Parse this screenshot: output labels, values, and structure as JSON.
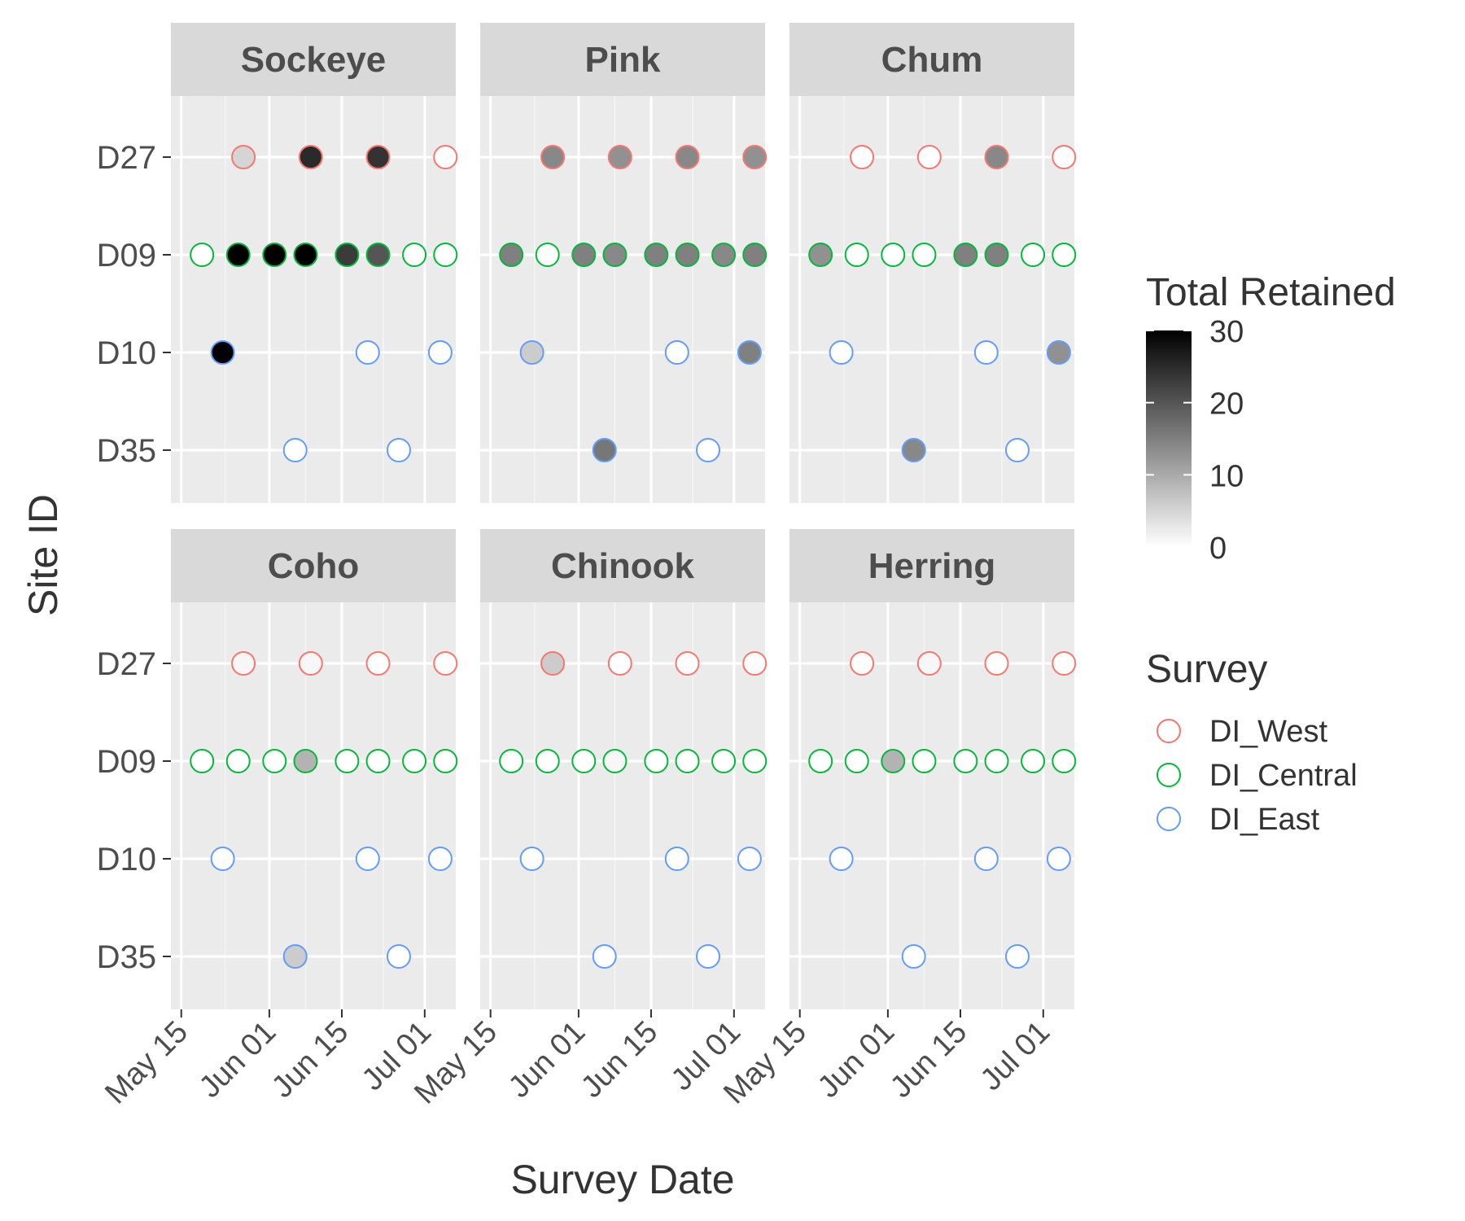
{
  "chart_data": {
    "type": "scatter",
    "x_axis": {
      "label": "Survey Date",
      "ticks": [
        {
          "date": "2019-05-15",
          "label": "May 15"
        },
        {
          "date": "2019-06-01",
          "label": "Jun 01"
        },
        {
          "date": "2019-06-15",
          "label": "Jun 15"
        },
        {
          "date": "2019-07-01",
          "label": "Jul 01"
        }
      ],
      "range": [
        "2019-05-13",
        "2019-07-07"
      ]
    },
    "y_axis": {
      "label": "Site ID",
      "categories": [
        "D27",
        "D09",
        "D10",
        "D35"
      ]
    },
    "fill_scale": {
      "title": "Total Retained",
      "min": 0,
      "max": 30,
      "ticks": [
        0,
        10,
        20,
        30
      ],
      "low_color": "#ffffff",
      "high_color": "#000000"
    },
    "color_legend": {
      "title": "Survey",
      "entries": [
        {
          "name": "DI_West",
          "color": "#F8766D"
        },
        {
          "name": "DI_Central",
          "color": "#00BA38"
        },
        {
          "name": "DI_East",
          "color": "#619CFF"
        }
      ]
    },
    "site_survey": {
      "D27": "DI_West",
      "D09": "DI_Central",
      "D10": "DI_East",
      "D35": "DI_East"
    },
    "site_dates": {
      "D27": [
        "2019-05-27",
        "2019-06-09",
        "2019-06-22",
        "2019-07-05"
      ],
      "D09": [
        "2019-05-19",
        "2019-05-26",
        "2019-06-02",
        "2019-06-08",
        "2019-06-16",
        "2019-06-22",
        "2019-06-29",
        "2019-07-05"
      ],
      "D10": [
        "2019-05-23",
        "2019-06-20",
        "2019-07-04"
      ],
      "D35": [
        "2019-06-06",
        "2019-06-26"
      ]
    },
    "grid": true,
    "facets": [
      {
        "title": "Sockeye",
        "values": {
          "D27": [
            5,
            25,
            24,
            0
          ],
          "D09": [
            0,
            30,
            30,
            30,
            23,
            20,
            0,
            0
          ],
          "D10": [
            30,
            0,
            0
          ],
          "D35": [
            0,
            0
          ]
        }
      },
      {
        "title": "Pink",
        "values": {
          "D27": [
            14,
            13,
            14,
            13
          ],
          "D09": [
            15,
            0,
            15,
            14,
            15,
            15,
            14,
            15
          ],
          "D10": [
            6,
            0,
            15
          ],
          "D35": [
            16,
            0
          ]
        }
      },
      {
        "title": "Chum",
        "values": {
          "D27": [
            0,
            0,
            14,
            0
          ],
          "D09": [
            13,
            0,
            0,
            0,
            15,
            15,
            0,
            0
          ],
          "D10": [
            0,
            0,
            13
          ],
          "D35": [
            14,
            0
          ]
        }
      },
      {
        "title": "Coho",
        "values": {
          "D27": [
            1,
            1,
            0,
            0
          ],
          "D09": [
            0,
            0,
            0,
            9,
            0,
            0,
            0,
            0
          ],
          "D10": [
            0,
            0,
            0
          ],
          "D35": [
            6,
            0
          ]
        }
      },
      {
        "title": "Chinook",
        "values": {
          "D27": [
            6,
            0,
            0,
            0
          ],
          "D09": [
            0,
            0,
            0,
            1,
            0,
            0,
            0,
            0
          ],
          "D10": [
            0,
            0,
            0
          ],
          "D35": [
            0,
            0
          ]
        }
      },
      {
        "title": "Herring",
        "values": {
          "D27": [
            0,
            1,
            0,
            0
          ],
          "D09": [
            0,
            0,
            9,
            0,
            0,
            0,
            0,
            0
          ],
          "D10": [
            0,
            0,
            0
          ],
          "D35": [
            0,
            0
          ]
        }
      }
    ]
  }
}
